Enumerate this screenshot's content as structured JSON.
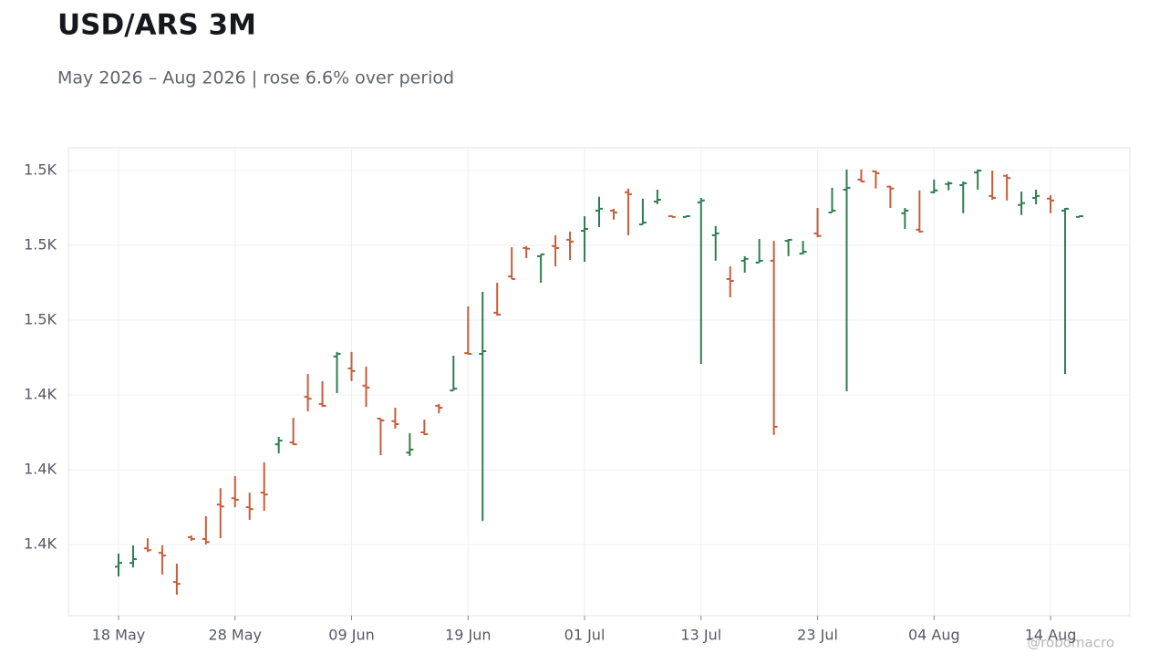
{
  "chart_data": {
    "type": "ohlc",
    "title": "USD/ARS 3M",
    "subtitle": "May 2026 – Aug 2026 | rose 6.6% over period",
    "watermark": "@robomacro",
    "categories": [
      "18 May",
      null,
      null,
      null,
      null,
      null,
      null,
      null,
      "28 May",
      null,
      null,
      null,
      null,
      null,
      null,
      null,
      "09 Jun",
      null,
      null,
      null,
      null,
      null,
      null,
      null,
      "19 Jun",
      null,
      null,
      null,
      null,
      null,
      null,
      null,
      "01 Jul",
      null,
      null,
      null,
      null,
      null,
      null,
      null,
      "13 Jul",
      null,
      null,
      null,
      null,
      null,
      null,
      null,
      "23 Jul",
      null,
      null,
      null,
      null,
      null,
      null,
      null,
      "04 Aug",
      null,
      null,
      null,
      null,
      null,
      null,
      null,
      "14 Aug",
      null,
      null
    ],
    "open": [
      1394.1,
      1395.1,
      1399.0,
      1397.8,
      1390.0,
      1402.0,
      1401.5,
      1410.7,
      1412.4,
      1410.0,
      1413.9,
      1426.8,
      1427.3,
      1439.5,
      1437.6,
      1450.3,
      1447.1,
      1442.5,
      1433.7,
      1433.0,
      1424.6,
      1430.0,
      1437.1,
      1441.2,
      1451.2,
      1451.0,
      1462.0,
      1471.7,
      1479.3,
      1477.1,
      1479.8,
      1481.5,
      1483.9,
      1489.3,
      1489.3,
      1494.2,
      1485.6,
      1491.7,
      1487.8,
      1487.6,
      1491.5,
      1482.7,
      1471.0,
      1475.9,
      1475.4,
      1475.9,
      1481.2,
      1477.8,
      1483.2,
      1488.8,
      1494.9,
      1497.6,
      1499.8,
      1495.7,
      1488.6,
      1484.2,
      1494.2,
      1496.4,
      1496.1,
      1499.5,
      1493.2,
      1498.6,
      1490.8,
      1492.7,
      1492.5,
      1489.3,
      1487.6
    ],
    "high": [
      1397.6,
      1399.8,
      1401.7,
      1399.8,
      1394.9,
      1402.4,
      1407.6,
      1415.1,
      1418.3,
      1413.9,
      1422.0,
      1428.8,
      1433.9,
      1445.6,
      1443.7,
      1451.5,
      1451.5,
      1447.6,
      1433.7,
      1436.6,
      1429.8,
      1433.4,
      1437.6,
      1450.5,
      1463.7,
      1467.6,
      1470.0,
      1479.5,
      1479.8,
      1477.6,
      1482.7,
      1483.7,
      1487.8,
      1493.0,
      1489.8,
      1495.2,
      1492.5,
      1494.9,
      1488.0,
      1488.0,
      1492.7,
      1485.2,
      1474.4,
      1477.1,
      1481.7,
      1481.2,
      1481.7,
      1481.2,
      1490.0,
      1495.4,
      1500.3,
      1500.3,
      1500.0,
      1495.9,
      1490.0,
      1494.7,
      1497.6,
      1497.1,
      1497.1,
      1500.3,
      1500.0,
      1499.0,
      1494.4,
      1494.9,
      1493.4,
      1490.0,
      1488.0
    ],
    "low": [
      1391.5,
      1393.9,
      1398.0,
      1392.0,
      1386.6,
      1401.0,
      1400.0,
      1401.7,
      1410.0,
      1406.6,
      1409.0,
      1424.4,
      1426.6,
      1435.6,
      1436.8,
      1440.5,
      1443.7,
      1436.8,
      1423.9,
      1431.0,
      1423.7,
      1429.3,
      1435.1,
      1441.2,
      1450.8,
      1406.3,
      1461.2,
      1471.0,
      1476.6,
      1470.0,
      1474.4,
      1476.1,
      1475.6,
      1484.9,
      1486.9,
      1482.7,
      1485.6,
      1491.0,
      1487.6,
      1487.6,
      1448.3,
      1475.9,
      1466.1,
      1472.7,
      1475.4,
      1429.3,
      1477.1,
      1477.6,
      1482.2,
      1488.8,
      1441.0,
      1496.9,
      1495.2,
      1490.0,
      1484.4,
      1483.4,
      1493.9,
      1494.7,
      1488.6,
      1494.9,
      1492.2,
      1492.0,
      1488.1,
      1491.0,
      1488.6,
      1445.6,
      1487.6
    ],
    "close": [
      1395.1,
      1396.1,
      1398.5,
      1397.1,
      1389.5,
      1401.5,
      1400.7,
      1410.2,
      1412.0,
      1409.5,
      1413.4,
      1427.8,
      1426.8,
      1439.0,
      1437.1,
      1451.0,
      1446.4,
      1442.0,
      1433.2,
      1432.2,
      1425.4,
      1429.5,
      1436.6,
      1441.7,
      1451.0,
      1451.7,
      1461.5,
      1471.0,
      1479.1,
      1477.6,
      1479.3,
      1481.0,
      1484.4,
      1489.8,
      1488.8,
      1493.7,
      1486.1,
      1492.2,
      1487.6,
      1487.8,
      1492.0,
      1483.2,
      1470.5,
      1476.4,
      1475.9,
      1431.5,
      1481.5,
      1478.3,
      1482.5,
      1489.3,
      1495.4,
      1497.1,
      1499.3,
      1495.2,
      1489.3,
      1483.7,
      1494.7,
      1496.6,
      1496.6,
      1500.0,
      1492.7,
      1498.0,
      1491.3,
      1493.2,
      1492.0,
      1489.8,
      1487.8
    ],
    "up_color": "#2e7d4f",
    "down_color": "#c65d3b",
    "ylim": [
      1381.0,
      1506.1
    ],
    "yticks": [
      {
        "value": 1400,
        "label": "1.4K"
      },
      {
        "value": 1420,
        "label": "1.4K"
      },
      {
        "value": 1440,
        "label": "1.4K"
      },
      {
        "value": 1460,
        "label": "1.5K"
      },
      {
        "value": 1480,
        "label": "1.5K"
      },
      {
        "value": 1500,
        "label": "1.5K"
      }
    ],
    "grid": true
  }
}
